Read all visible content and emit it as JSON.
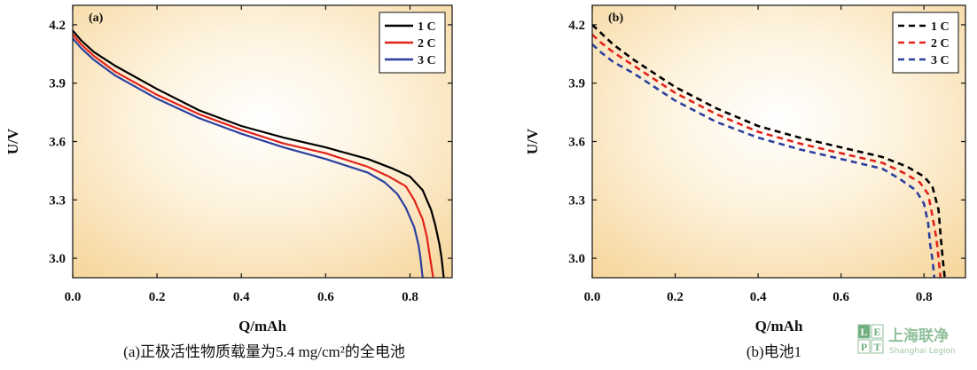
{
  "chart_data": [
    {
      "id": "a",
      "type": "line",
      "panel_tag": "(a)",
      "xlabel": "Q/mAh",
      "ylabel": "U/V",
      "xlim": [
        0,
        0.9
      ],
      "ylim": [
        2.9,
        4.3
      ],
      "xticks": [
        "0.0",
        "0.2",
        "0.4",
        "0.6",
        "0.8"
      ],
      "yticks": [
        "3.0",
        "3.3",
        "3.6",
        "3.9",
        "4.2"
      ],
      "legend_position": "top-right",
      "line_style": "solid",
      "caption": "(a)正极活性物质载量为5.4 mg/cm²的全电池",
      "series": [
        {
          "name": "1 C",
          "color": "#000000",
          "x": [
            0,
            0.02,
            0.05,
            0.1,
            0.2,
            0.3,
            0.4,
            0.5,
            0.6,
            0.7,
            0.76,
            0.8,
            0.83,
            0.85,
            0.86,
            0.87,
            0.875,
            0.88
          ],
          "y": [
            4.17,
            4.12,
            4.06,
            3.99,
            3.87,
            3.76,
            3.68,
            3.62,
            3.57,
            3.51,
            3.46,
            3.42,
            3.35,
            3.25,
            3.17,
            3.07,
            3.0,
            2.9
          ]
        },
        {
          "name": "2 C",
          "color": "#e2231a",
          "x": [
            0,
            0.02,
            0.05,
            0.1,
            0.2,
            0.3,
            0.4,
            0.5,
            0.6,
            0.7,
            0.75,
            0.79,
            0.81,
            0.83,
            0.84,
            0.845,
            0.85,
            0.855
          ],
          "y": [
            4.15,
            4.1,
            4.04,
            3.96,
            3.84,
            3.74,
            3.66,
            3.59,
            3.54,
            3.47,
            3.42,
            3.37,
            3.3,
            3.2,
            3.11,
            3.04,
            2.97,
            2.9
          ]
        },
        {
          "name": "3 C",
          "color": "#2b3f9e",
          "x": [
            0,
            0.02,
            0.05,
            0.1,
            0.2,
            0.3,
            0.4,
            0.5,
            0.6,
            0.7,
            0.74,
            0.77,
            0.79,
            0.81,
            0.82,
            0.825,
            0.83
          ],
          "y": [
            4.13,
            4.08,
            4.02,
            3.94,
            3.82,
            3.72,
            3.64,
            3.57,
            3.51,
            3.44,
            3.39,
            3.33,
            3.26,
            3.16,
            3.07,
            3.0,
            2.9
          ]
        }
      ]
    },
    {
      "id": "b",
      "type": "line",
      "panel_tag": "(b)",
      "xlabel": "Q/mAh",
      "ylabel": "U/V",
      "xlim": [
        0,
        0.9
      ],
      "ylim": [
        2.9,
        4.3
      ],
      "xticks": [
        "0.0",
        "0.2",
        "0.4",
        "0.6",
        "0.8"
      ],
      "yticks": [
        "3.0",
        "3.3",
        "3.6",
        "3.9",
        "4.2"
      ],
      "legend_position": "top-right",
      "line_style": "dashed",
      "caption": "(b)电池1",
      "series": [
        {
          "name": "1 C",
          "color": "#000000",
          "x": [
            0,
            0.02,
            0.05,
            0.1,
            0.2,
            0.3,
            0.4,
            0.5,
            0.6,
            0.7,
            0.76,
            0.8,
            0.82,
            0.835,
            0.84,
            0.845,
            0.85
          ],
          "y": [
            4.2,
            4.16,
            4.1,
            4.02,
            3.88,
            3.77,
            3.68,
            3.62,
            3.57,
            3.52,
            3.47,
            3.42,
            3.37,
            3.25,
            3.12,
            3.0,
            2.9
          ]
        },
        {
          "name": "2 C",
          "color": "#e2231a",
          "x": [
            0,
            0.02,
            0.05,
            0.1,
            0.2,
            0.3,
            0.4,
            0.5,
            0.6,
            0.7,
            0.75,
            0.79,
            0.81,
            0.82,
            0.83,
            0.835,
            0.84
          ],
          "y": [
            4.15,
            4.11,
            4.06,
            3.99,
            3.85,
            3.74,
            3.65,
            3.59,
            3.54,
            3.49,
            3.44,
            3.39,
            3.33,
            3.22,
            3.1,
            3.0,
            2.9
          ]
        },
        {
          "name": "3 C",
          "color": "#2b3f9e",
          "x": [
            0,
            0.02,
            0.05,
            0.1,
            0.2,
            0.3,
            0.4,
            0.5,
            0.6,
            0.7,
            0.74,
            0.78,
            0.8,
            0.81,
            0.815,
            0.82,
            0.825
          ],
          "y": [
            4.1,
            4.06,
            4.01,
            3.95,
            3.81,
            3.7,
            3.62,
            3.56,
            3.51,
            3.46,
            3.41,
            3.35,
            3.28,
            3.18,
            3.07,
            3.0,
            2.9
          ]
        }
      ]
    }
  ],
  "watermark": {
    "letters": [
      "L",
      "E",
      "P",
      "T"
    ],
    "name": "上海联净",
    "subtitle": "Shanghai Legion"
  }
}
